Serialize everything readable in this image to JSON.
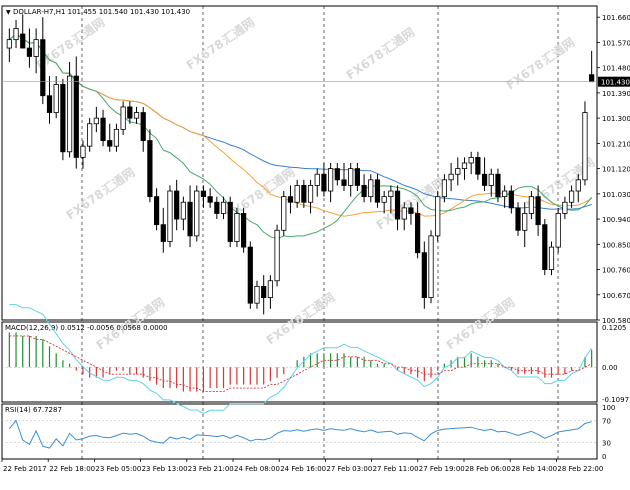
{
  "colors": {
    "ma_slow": "#3a7fd6",
    "ma_mid": "#f7a234",
    "ma_fast": "#4aa86a",
    "macd_pos": "#1f8f2f",
    "macd_neg": "#d83434",
    "macd_line": "#5fd3e8",
    "macd_signal": "#d83434",
    "rsi_line": "#3a8fd6",
    "price_bg": "#000000"
  },
  "chart_data": [
    {
      "type": "candlestick",
      "title": "DOLLAR-H7,H1  101.455 101.540 101.430 101.430",
      "ylim": [
        100.58,
        101.7
      ],
      "y_ticks": [
        "101.660",
        "101.570",
        "101.480",
        "101.390",
        "101.300",
        "101.210",
        "101.120",
        "101.030",
        "100.940",
        "100.850",
        "100.760",
        "100.670",
        "100.580"
      ],
      "current_price_label": "101.430",
      "current_price": 101.43,
      "x_labels": [
        "22 Feb 2017",
        "22 Feb 18:00",
        "23 Feb 05:00",
        "23 Feb 13:00",
        "23 Feb 21:00",
        "24 Feb 08:00",
        "24 Feb 16:00",
        "27 Feb 03:00",
        "27 Feb 11:00",
        "27 Feb 19:00",
        "28 Feb 06:00",
        "28 Feb 14:00",
        "28 Feb 22:00"
      ],
      "ohlc": [
        {
          "o": 101.55,
          "h": 101.62,
          "l": 101.5,
          "c": 101.58
        },
        {
          "o": 101.58,
          "h": 101.65,
          "l": 101.55,
          "c": 101.62
        },
        {
          "o": 101.6,
          "h": 101.67,
          "l": 101.55,
          "c": 101.55
        },
        {
          "o": 101.55,
          "h": 101.62,
          "l": 101.48,
          "c": 101.52
        },
        {
          "o": 101.52,
          "h": 101.62,
          "l": 101.46,
          "c": 101.58
        },
        {
          "o": 101.58,
          "h": 101.66,
          "l": 101.35,
          "c": 101.38
        },
        {
          "o": 101.38,
          "h": 101.45,
          "l": 101.28,
          "c": 101.32
        },
        {
          "o": 101.32,
          "h": 101.45,
          "l": 101.3,
          "c": 101.42
        },
        {
          "o": 101.42,
          "h": 101.44,
          "l": 101.15,
          "c": 101.18
        },
        {
          "o": 101.18,
          "h": 101.5,
          "l": 101.16,
          "c": 101.45
        },
        {
          "o": 101.45,
          "h": 101.52,
          "l": 101.12,
          "c": 101.16
        },
        {
          "o": 101.16,
          "h": 101.22,
          "l": 101.12,
          "c": 101.2
        },
        {
          "o": 101.2,
          "h": 101.3,
          "l": 101.18,
          "c": 101.28
        },
        {
          "o": 101.28,
          "h": 101.34,
          "l": 101.25,
          "c": 101.3
        },
        {
          "o": 101.3,
          "h": 101.33,
          "l": 101.2,
          "c": 101.22
        },
        {
          "o": 101.22,
          "h": 101.28,
          "l": 101.18,
          "c": 101.2
        },
        {
          "o": 101.2,
          "h": 101.28,
          "l": 101.18,
          "c": 101.26
        },
        {
          "o": 101.26,
          "h": 101.36,
          "l": 101.24,
          "c": 101.34
        },
        {
          "o": 101.34,
          "h": 101.36,
          "l": 101.28,
          "c": 101.3
        },
        {
          "o": 101.3,
          "h": 101.34,
          "l": 101.28,
          "c": 101.32
        },
        {
          "o": 101.32,
          "h": 101.34,
          "l": 101.18,
          "c": 101.22
        },
        {
          "o": 101.22,
          "h": 101.26,
          "l": 101.0,
          "c": 101.02
        },
        {
          "o": 101.02,
          "h": 101.05,
          "l": 100.9,
          "c": 100.92
        },
        {
          "o": 100.92,
          "h": 100.98,
          "l": 100.82,
          "c": 100.86
        },
        {
          "o": 100.86,
          "h": 101.06,
          "l": 100.84,
          "c": 101.04
        },
        {
          "o": 101.04,
          "h": 101.08,
          "l": 100.9,
          "c": 100.94
        },
        {
          "o": 100.94,
          "h": 101.02,
          "l": 100.9,
          "c": 101.0
        },
        {
          "o": 101.0,
          "h": 101.06,
          "l": 100.84,
          "c": 100.88
        },
        {
          "o": 100.88,
          "h": 101.06,
          "l": 100.86,
          "c": 101.04
        },
        {
          "o": 101.04,
          "h": 101.06,
          "l": 100.98,
          "c": 101.02
        },
        {
          "o": 101.02,
          "h": 101.05,
          "l": 100.98,
          "c": 101.0
        },
        {
          "o": 101.0,
          "h": 101.02,
          "l": 100.94,
          "c": 100.96
        },
        {
          "o": 100.96,
          "h": 101.02,
          "l": 100.94,
          "c": 101.0
        },
        {
          "o": 101.0,
          "h": 101.02,
          "l": 100.84,
          "c": 100.86
        },
        {
          "o": 100.86,
          "h": 100.98,
          "l": 100.84,
          "c": 100.96
        },
        {
          "o": 100.96,
          "h": 100.98,
          "l": 100.82,
          "c": 100.84
        },
        {
          "o": 100.84,
          "h": 100.86,
          "l": 100.62,
          "c": 100.64
        },
        {
          "o": 100.64,
          "h": 100.72,
          "l": 100.62,
          "c": 100.7
        },
        {
          "o": 100.7,
          "h": 100.74,
          "l": 100.6,
          "c": 100.66
        },
        {
          "o": 100.66,
          "h": 100.74,
          "l": 100.62,
          "c": 100.72
        },
        {
          "o": 100.72,
          "h": 100.92,
          "l": 100.7,
          "c": 100.9
        },
        {
          "o": 100.9,
          "h": 101.04,
          "l": 100.88,
          "c": 101.02
        },
        {
          "o": 101.02,
          "h": 101.06,
          "l": 100.96,
          "c": 101.0
        },
        {
          "o": 101.0,
          "h": 101.08,
          "l": 100.98,
          "c": 101.06
        },
        {
          "o": 101.06,
          "h": 101.08,
          "l": 100.98,
          "c": 101.0
        },
        {
          "o": 101.0,
          "h": 101.08,
          "l": 100.96,
          "c": 101.06
        },
        {
          "o": 101.06,
          "h": 101.12,
          "l": 101.02,
          "c": 101.1
        },
        {
          "o": 101.1,
          "h": 101.14,
          "l": 101.02,
          "c": 101.04
        },
        {
          "o": 101.04,
          "h": 101.14,
          "l": 101.0,
          "c": 101.12
        },
        {
          "o": 101.12,
          "h": 101.14,
          "l": 101.06,
          "c": 101.08
        },
        {
          "o": 101.08,
          "h": 101.14,
          "l": 101.04,
          "c": 101.06
        },
        {
          "o": 101.06,
          "h": 101.14,
          "l": 101.02,
          "c": 101.12
        },
        {
          "o": 101.12,
          "h": 101.14,
          "l": 101.04,
          "c": 101.06
        },
        {
          "o": 101.06,
          "h": 101.1,
          "l": 101.0,
          "c": 101.02
        },
        {
          "o": 101.02,
          "h": 101.1,
          "l": 101.0,
          "c": 101.08
        },
        {
          "o": 101.08,
          "h": 101.1,
          "l": 100.98,
          "c": 101.0
        },
        {
          "o": 101.0,
          "h": 101.04,
          "l": 100.96,
          "c": 101.02
        },
        {
          "o": 101.02,
          "h": 101.06,
          "l": 100.96,
          "c": 101.04
        },
        {
          "o": 101.04,
          "h": 101.06,
          "l": 100.9,
          "c": 100.94
        },
        {
          "o": 100.94,
          "h": 101.0,
          "l": 100.9,
          "c": 100.98
        },
        {
          "o": 100.98,
          "h": 101.0,
          "l": 100.92,
          "c": 100.96
        },
        {
          "o": 100.96,
          "h": 101.0,
          "l": 100.8,
          "c": 100.82
        },
        {
          "o": 100.82,
          "h": 100.86,
          "l": 100.62,
          "c": 100.66
        },
        {
          "o": 100.66,
          "h": 100.9,
          "l": 100.64,
          "c": 100.88
        },
        {
          "o": 100.88,
          "h": 101.04,
          "l": 100.86,
          "c": 101.02
        },
        {
          "o": 101.02,
          "h": 101.1,
          "l": 101.0,
          "c": 101.08
        },
        {
          "o": 101.08,
          "h": 101.14,
          "l": 101.04,
          "c": 101.1
        },
        {
          "o": 101.1,
          "h": 101.16,
          "l": 101.06,
          "c": 101.12
        },
        {
          "o": 101.12,
          "h": 101.16,
          "l": 101.08,
          "c": 101.14
        },
        {
          "o": 101.14,
          "h": 101.18,
          "l": 101.1,
          "c": 101.16
        },
        {
          "o": 101.16,
          "h": 101.18,
          "l": 101.08,
          "c": 101.1
        },
        {
          "o": 101.1,
          "h": 101.16,
          "l": 101.04,
          "c": 101.06
        },
        {
          "o": 101.06,
          "h": 101.12,
          "l": 101.02,
          "c": 101.1
        },
        {
          "o": 101.1,
          "h": 101.12,
          "l": 101.0,
          "c": 101.02
        },
        {
          "o": 101.02,
          "h": 101.06,
          "l": 100.98,
          "c": 101.04
        },
        {
          "o": 101.04,
          "h": 101.06,
          "l": 100.96,
          "c": 100.98
        },
        {
          "o": 100.98,
          "h": 101.0,
          "l": 100.88,
          "c": 100.9
        },
        {
          "o": 100.9,
          "h": 101.0,
          "l": 100.84,
          "c": 100.96
        },
        {
          "o": 100.96,
          "h": 101.04,
          "l": 100.94,
          "c": 101.02
        },
        {
          "o": 101.02,
          "h": 101.06,
          "l": 100.88,
          "c": 100.92
        },
        {
          "o": 100.92,
          "h": 100.94,
          "l": 100.74,
          "c": 100.76
        },
        {
          "o": 100.76,
          "h": 100.86,
          "l": 100.74,
          "c": 100.84
        },
        {
          "o": 100.84,
          "h": 100.98,
          "l": 100.82,
          "c": 100.96
        },
        {
          "o": 100.96,
          "h": 101.02,
          "l": 100.94,
          "c": 101.0
        },
        {
          "o": 101.0,
          "h": 101.06,
          "l": 100.98,
          "c": 101.04
        },
        {
          "o": 101.04,
          "h": 101.1,
          "l": 101.0,
          "c": 101.08
        },
        {
          "o": 101.08,
          "h": 101.36,
          "l": 101.06,
          "c": 101.32
        },
        {
          "o": 101.455,
          "h": 101.54,
          "l": 101.43,
          "c": 101.43
        }
      ]
    },
    {
      "type": "line",
      "title": "MACD(12,26,9) 0.0512 -0.0056 0.0568 0.0000",
      "ylim": [
        -0.1,
        0.13
      ],
      "y_ticks": [
        "0.1205",
        "0.00",
        "-0.1097"
      ],
      "histogram": [
        0.1,
        0.1,
        0.09,
        0.09,
        0.09,
        0.08,
        0.06,
        0.04,
        0.02,
        0.01,
        -0.01,
        -0.02,
        -0.03,
        -0.03,
        -0.03,
        -0.02,
        -0.01,
        -0.01,
        -0.02,
        -0.02,
        -0.03,
        -0.04,
        -0.05,
        -0.06,
        -0.06,
        -0.06,
        -0.07,
        -0.07,
        -0.07,
        -0.07,
        -0.06,
        -0.06,
        -0.06,
        -0.05,
        -0.05,
        -0.05,
        -0.05,
        -0.05,
        -0.05,
        -0.04,
        -0.03,
        -0.02,
        0.0,
        0.02,
        0.03,
        0.04,
        0.04,
        0.04,
        0.04,
        0.04,
        0.04,
        0.03,
        0.03,
        0.03,
        0.02,
        0.01,
        0.01,
        0.0,
        -0.01,
        -0.02,
        -0.02,
        -0.03,
        -0.04,
        -0.03,
        -0.01,
        0.01,
        0.02,
        0.03,
        0.03,
        0.04,
        0.03,
        0.02,
        0.02,
        0.01,
        0.0,
        -0.01,
        -0.02,
        -0.02,
        -0.02,
        -0.02,
        -0.03,
        -0.03,
        -0.02,
        -0.02,
        -0.01,
        0.0,
        0.03,
        0.05
      ],
      "signal": [
        0.09,
        0.09,
        0.09,
        0.09,
        0.08,
        0.08,
        0.07,
        0.06,
        0.05,
        0.04,
        0.03,
        0.02,
        0.01,
        0.0,
        -0.01,
        -0.02,
        -0.02,
        -0.02,
        -0.02,
        -0.02,
        -0.02,
        -0.03,
        -0.03,
        -0.04,
        -0.04,
        -0.05,
        -0.05,
        -0.06,
        -0.06,
        -0.07,
        -0.07,
        -0.07,
        -0.07,
        -0.06,
        -0.06,
        -0.06,
        -0.06,
        -0.06,
        -0.06,
        -0.05,
        -0.05,
        -0.04,
        -0.03,
        -0.02,
        -0.01,
        0.0,
        0.01,
        0.02,
        0.02,
        0.02,
        0.03,
        0.03,
        0.03,
        0.02,
        0.02,
        0.02,
        0.01,
        0.01,
        0.0,
        0.0,
        -0.01,
        -0.01,
        -0.02,
        -0.02,
        -0.02,
        -0.01,
        -0.01,
        0.0,
        0.0,
        0.01,
        0.01,
        0.01,
        0.01,
        0.01,
        0.0,
        0.0,
        -0.01,
        -0.01,
        -0.01,
        -0.01,
        -0.02,
        -0.02,
        -0.02,
        -0.02,
        -0.01,
        -0.01,
        0.0,
        0.01
      ]
    },
    {
      "type": "line",
      "title": "RSI(14) 67.7287",
      "ylim": [
        0,
        100
      ],
      "y_ticks": [
        "100",
        "70",
        "30",
        "0"
      ],
      "levels": [
        70,
        30
      ]
    }
  ],
  "watermark": {
    "brand": "FX678",
    "chinese": "汇通网"
  }
}
